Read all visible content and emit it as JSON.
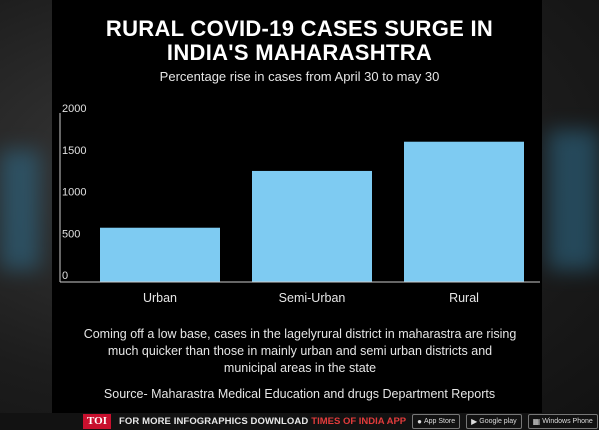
{
  "title_line1": "RURAL COVID-19 CASES SURGE IN",
  "title_line2": "INDIA'S MAHARASHTRA",
  "subtitle": "Percentage rise in cases from April 30 to may 30",
  "note": "Coming off a low base, cases in the lagelyrural district in maharastra are rising much quicker than those in mainly urban and semi urban districts and municipal areas in the state",
  "source": "Source- Maharastra Medical Education and drugs Department Reports",
  "footer": {
    "logo": "TOI",
    "text": "FOR MORE  INFOGRAPHICS DOWNLOAD",
    "brand": "TIMES OF INDIA APP",
    "badges": [
      {
        "icon": "apple-icon",
        "label": "App Store"
      },
      {
        "icon": "play-icon",
        "label": "Google play"
      },
      {
        "icon": "windows-icon",
        "label": "Windows Phone"
      }
    ]
  },
  "colors": {
    "bar": "#7ecbf2",
    "panel": "#000000",
    "axis": "#cccccc"
  },
  "chart_data": {
    "type": "bar",
    "title": "RURAL COVID-19 CASES SURGE IN INDIA'S MAHARASHTRA",
    "subtitle": "Percentage rise in cases from April 30 to may 30",
    "categories": [
      "Urban",
      "Semi-Urban",
      "Rural"
    ],
    "values": [
      650,
      1330,
      1680
    ],
    "ylim": [
      0,
      2000
    ],
    "yticks": [
      0,
      500,
      1000,
      1500,
      2000
    ],
    "xlabel": "",
    "ylabel": "",
    "grid": false,
    "legend": "none"
  }
}
